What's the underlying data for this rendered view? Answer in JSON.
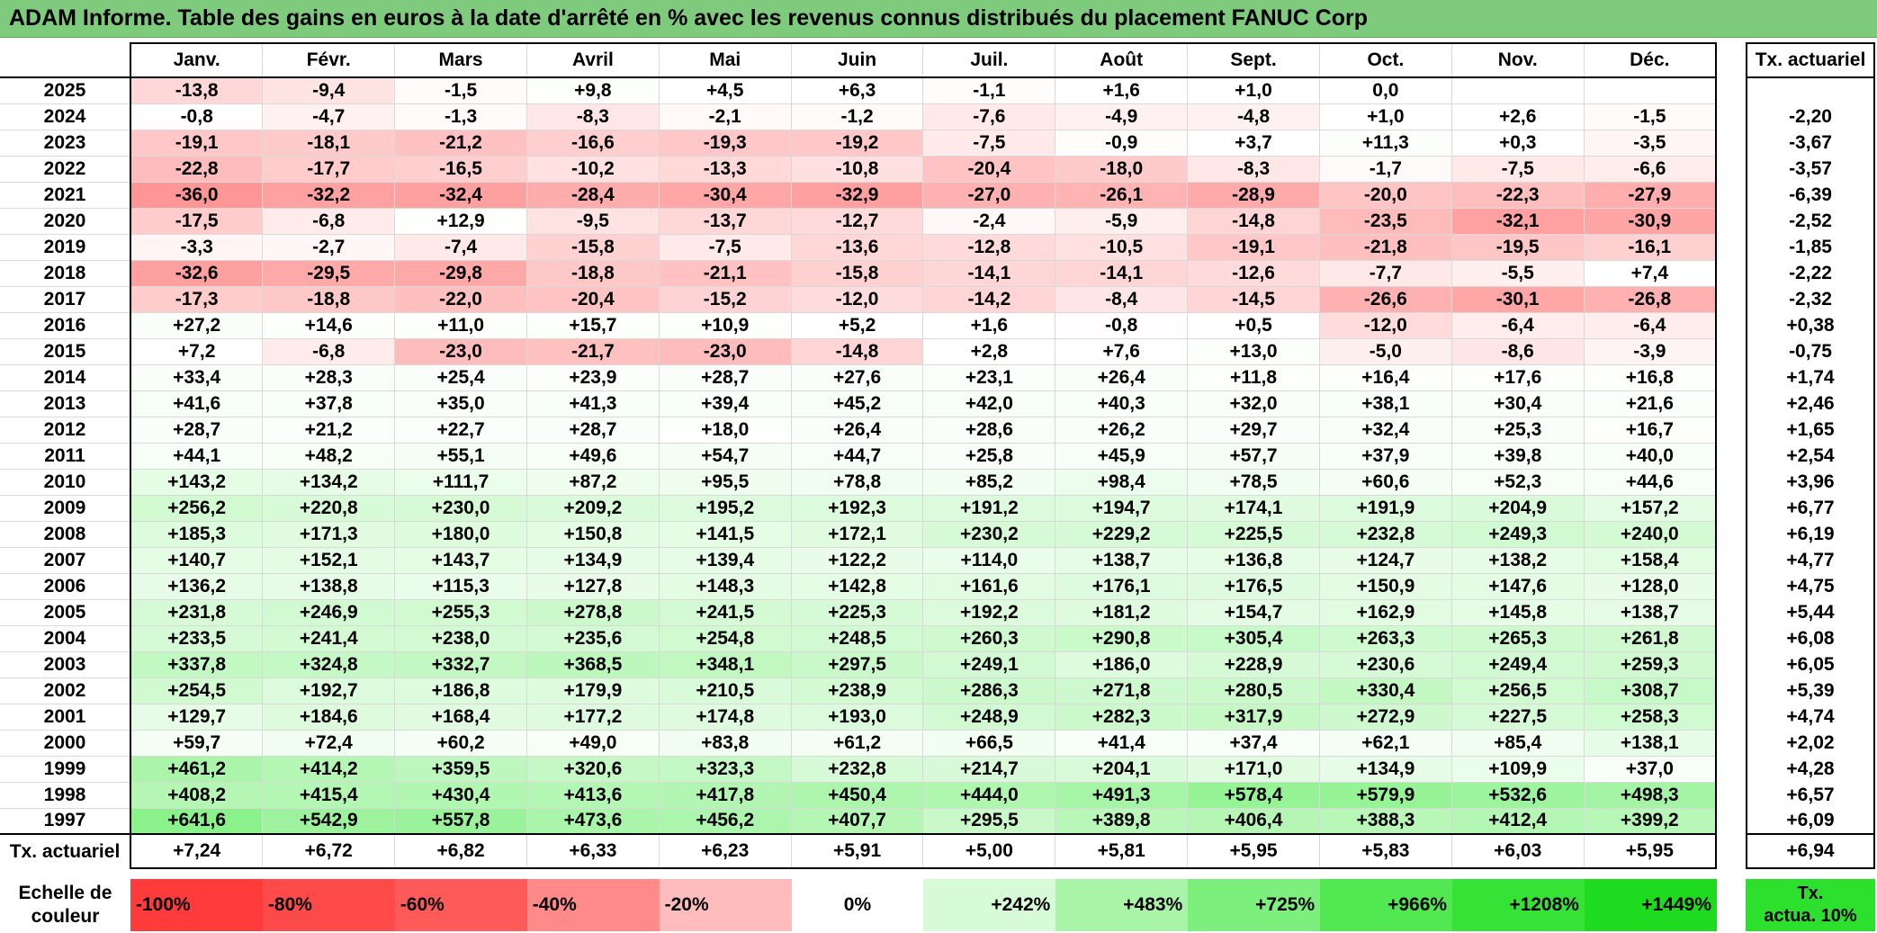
{
  "title": "ADAM Informe. Table des gains en euros à la date d'arrêté en % avec les revenus connus distribués du placement FANUC Corp",
  "months": [
    "Janv.",
    "Févr.",
    "Mars",
    "Avril",
    "Mai",
    "Juin",
    "Juil.",
    "Août",
    "Sept.",
    "Oct.",
    "Nov.",
    "Déc."
  ],
  "tx_header": "Tx. actuariel",
  "rows": [
    {
      "year": "2025",
      "cells": [
        "-13,8",
        "-9,4",
        "-1,5",
        "+9,8",
        "+4,5",
        "+6,3",
        "-1,1",
        "+1,6",
        "+1,0",
        "0,0",
        "",
        ""
      ],
      "tx": ""
    },
    {
      "year": "2024",
      "cells": [
        "-0,8",
        "-4,7",
        "-1,3",
        "-8,3",
        "-2,1",
        "-1,2",
        "-7,6",
        "-4,9",
        "-4,8",
        "+1,0",
        "+2,6",
        "-1,5"
      ],
      "tx": "-2,20"
    },
    {
      "year": "2023",
      "cells": [
        "-19,1",
        "-18,1",
        "-21,2",
        "-16,6",
        "-19,3",
        "-19,2",
        "-7,5",
        "-0,9",
        "+3,7",
        "+11,3",
        "+0,3",
        "-3,5"
      ],
      "tx": "-3,67"
    },
    {
      "year": "2022",
      "cells": [
        "-22,8",
        "-17,7",
        "-16,5",
        "-10,2",
        "-13,3",
        "-10,8",
        "-20,4",
        "-18,0",
        "-8,3",
        "-1,7",
        "-7,5",
        "-6,6"
      ],
      "tx": "-3,57"
    },
    {
      "year": "2021",
      "cells": [
        "-36,0",
        "-32,2",
        "-32,4",
        "-28,4",
        "-30,4",
        "-32,9",
        "-27,0",
        "-26,1",
        "-28,9",
        "-20,0",
        "-22,3",
        "-27,9"
      ],
      "tx": "-6,39"
    },
    {
      "year": "2020",
      "cells": [
        "-17,5",
        "-6,8",
        "+12,9",
        "-9,5",
        "-13,7",
        "-12,7",
        "-2,4",
        "-5,9",
        "-14,8",
        "-23,5",
        "-32,1",
        "-30,9"
      ],
      "tx": "-2,52"
    },
    {
      "year": "2019",
      "cells": [
        "-3,3",
        "-2,7",
        "-7,4",
        "-15,8",
        "-7,5",
        "-13,6",
        "-12,8",
        "-10,5",
        "-19,1",
        "-21,8",
        "-19,5",
        "-16,1"
      ],
      "tx": "-1,85"
    },
    {
      "year": "2018",
      "cells": [
        "-32,6",
        "-29,5",
        "-29,8",
        "-18,8",
        "-21,1",
        "-15,8",
        "-14,1",
        "-14,1",
        "-12,6",
        "-7,7",
        "-5,5",
        "+7,4"
      ],
      "tx": "-2,22"
    },
    {
      "year": "2017",
      "cells": [
        "-17,3",
        "-18,8",
        "-22,0",
        "-20,4",
        "-15,2",
        "-12,0",
        "-14,2",
        "-8,4",
        "-14,5",
        "-26,6",
        "-30,1",
        "-26,8"
      ],
      "tx": "-2,32"
    },
    {
      "year": "2016",
      "cells": [
        "+27,2",
        "+14,6",
        "+11,0",
        "+15,7",
        "+10,9",
        "+5,2",
        "+1,6",
        "-0,8",
        "+0,5",
        "-12,0",
        "-6,4",
        "-6,4"
      ],
      "tx": "+0,38"
    },
    {
      "year": "2015",
      "cells": [
        "+7,2",
        "-6,8",
        "-23,0",
        "-21,7",
        "-23,0",
        "-14,8",
        "+2,8",
        "+7,6",
        "+13,0",
        "-5,0",
        "-8,6",
        "-3,9"
      ],
      "tx": "-0,75"
    },
    {
      "year": "2014",
      "cells": [
        "+33,4",
        "+28,3",
        "+25,4",
        "+23,9",
        "+28,7",
        "+27,6",
        "+23,1",
        "+26,4",
        "+11,8",
        "+16,4",
        "+17,6",
        "+16,8"
      ],
      "tx": "+1,74"
    },
    {
      "year": "2013",
      "cells": [
        "+41,6",
        "+37,8",
        "+35,0",
        "+41,3",
        "+39,4",
        "+45,2",
        "+42,0",
        "+40,3",
        "+32,0",
        "+38,1",
        "+30,4",
        "+21,6"
      ],
      "tx": "+2,46"
    },
    {
      "year": "2012",
      "cells": [
        "+28,7",
        "+21,2",
        "+22,7",
        "+28,7",
        "+18,0",
        "+26,4",
        "+28,6",
        "+26,2",
        "+29,7",
        "+32,4",
        "+25,3",
        "+16,7"
      ],
      "tx": "+1,65"
    },
    {
      "year": "2011",
      "cells": [
        "+44,1",
        "+48,2",
        "+55,1",
        "+49,6",
        "+54,7",
        "+44,7",
        "+25,8",
        "+45,9",
        "+57,7",
        "+37,9",
        "+39,8",
        "+40,0"
      ],
      "tx": "+2,54"
    },
    {
      "year": "2010",
      "cells": [
        "+143,2",
        "+134,2",
        "+111,7",
        "+87,2",
        "+95,5",
        "+78,8",
        "+85,2",
        "+98,4",
        "+78,5",
        "+60,6",
        "+52,3",
        "+44,6"
      ],
      "tx": "+3,96"
    },
    {
      "year": "2009",
      "cells": [
        "+256,2",
        "+220,8",
        "+230,0",
        "+209,2",
        "+195,2",
        "+192,3",
        "+191,2",
        "+194,7",
        "+174,1",
        "+191,9",
        "+204,9",
        "+157,2"
      ],
      "tx": "+6,77"
    },
    {
      "year": "2008",
      "cells": [
        "+185,3",
        "+171,3",
        "+180,0",
        "+150,8",
        "+141,5",
        "+172,1",
        "+230,2",
        "+229,2",
        "+225,5",
        "+232,8",
        "+249,3",
        "+240,0"
      ],
      "tx": "+6,19"
    },
    {
      "year": "2007",
      "cells": [
        "+140,7",
        "+152,1",
        "+143,7",
        "+134,9",
        "+139,4",
        "+122,2",
        "+114,0",
        "+138,7",
        "+136,8",
        "+124,7",
        "+138,2",
        "+158,4"
      ],
      "tx": "+4,77"
    },
    {
      "year": "2006",
      "cells": [
        "+136,2",
        "+138,8",
        "+115,3",
        "+127,8",
        "+148,3",
        "+142,8",
        "+161,6",
        "+176,1",
        "+176,5",
        "+150,9",
        "+147,6",
        "+128,0"
      ],
      "tx": "+4,75"
    },
    {
      "year": "2005",
      "cells": [
        "+231,8",
        "+246,9",
        "+255,3",
        "+278,8",
        "+241,5",
        "+225,3",
        "+192,2",
        "+181,2",
        "+154,7",
        "+162,9",
        "+145,8",
        "+138,7"
      ],
      "tx": "+5,44"
    },
    {
      "year": "2004",
      "cells": [
        "+233,5",
        "+241,4",
        "+238,0",
        "+235,6",
        "+254,8",
        "+248,5",
        "+260,3",
        "+290,8",
        "+305,4",
        "+263,3",
        "+265,3",
        "+261,8"
      ],
      "tx": "+6,08"
    },
    {
      "year": "2003",
      "cells": [
        "+337,8",
        "+324,8",
        "+332,7",
        "+368,5",
        "+348,1",
        "+297,5",
        "+249,1",
        "+186,0",
        "+228,9",
        "+230,6",
        "+249,4",
        "+259,3"
      ],
      "tx": "+6,05"
    },
    {
      "year": "2002",
      "cells": [
        "+254,5",
        "+192,7",
        "+186,8",
        "+179,9",
        "+210,5",
        "+238,9",
        "+286,3",
        "+271,8",
        "+280,5",
        "+330,4",
        "+256,5",
        "+308,7"
      ],
      "tx": "+5,39"
    },
    {
      "year": "2001",
      "cells": [
        "+129,7",
        "+184,6",
        "+168,4",
        "+177,2",
        "+174,8",
        "+193,0",
        "+248,9",
        "+282,3",
        "+317,9",
        "+272,9",
        "+227,5",
        "+258,3"
      ],
      "tx": "+4,74"
    },
    {
      "year": "2000",
      "cells": [
        "+59,7",
        "+72,4",
        "+60,2",
        "+49,0",
        "+83,8",
        "+61,2",
        "+66,5",
        "+41,4",
        "+37,4",
        "+62,1",
        "+85,4",
        "+138,1"
      ],
      "tx": "+2,02"
    },
    {
      "year": "1999",
      "cells": [
        "+461,2",
        "+414,2",
        "+359,5",
        "+320,6",
        "+323,3",
        "+232,8",
        "+214,7",
        "+204,1",
        "+171,0",
        "+134,9",
        "+109,9",
        "+37,0"
      ],
      "tx": "+4,28"
    },
    {
      "year": "1998",
      "cells": [
        "+408,2",
        "+415,4",
        "+430,4",
        "+413,6",
        "+417,8",
        "+450,4",
        "+444,0",
        "+491,3",
        "+578,4",
        "+579,9",
        "+532,6",
        "+498,3"
      ],
      "tx": "+6,57"
    },
    {
      "year": "1997",
      "cells": [
        "+641,6",
        "+542,9",
        "+557,8",
        "+473,6",
        "+456,2",
        "+407,7",
        "+295,5",
        "+389,8",
        "+406,4",
        "+388,3",
        "+412,4",
        "+399,2"
      ],
      "tx": "+6,09"
    }
  ],
  "tx_row": {
    "label": "Tx. actuariel",
    "cells": [
      "+7,24",
      "+6,72",
      "+6,82",
      "+6,33",
      "+6,23",
      "+5,91",
      "+5,00",
      "+5,81",
      "+5,95",
      "+5,83",
      "+6,03",
      "+5,95"
    ],
    "total": "+6,94"
  },
  "legend": {
    "label_line1": "Echelle de",
    "label_line2": "couleur",
    "items": [
      {
        "text": "-100%",
        "color": "#ff3b3b",
        "kind": "neg"
      },
      {
        "text": "-80%",
        "color": "#ff4a4a",
        "kind": "neg"
      },
      {
        "text": "-60%",
        "color": "#ff5a5a",
        "kind": "neg"
      },
      {
        "text": "-40%",
        "color": "#ff8a8a",
        "kind": "neg"
      },
      {
        "text": "-20%",
        "color": "#ffbcbc",
        "kind": "neg"
      },
      {
        "text": "0%",
        "color": "#ffffff",
        "kind": "zero"
      },
      {
        "text": "+242%",
        "color": "#d6fbd6",
        "kind": "pos"
      },
      {
        "text": "+483%",
        "color": "#a8f5a8",
        "kind": "pos"
      },
      {
        "text": "+725%",
        "color": "#7def7d",
        "kind": "pos"
      },
      {
        "text": "+966%",
        "color": "#52e852",
        "kind": "pos"
      },
      {
        "text": "+1208%",
        "color": "#36e236",
        "kind": "pos"
      },
      {
        "text": "+1449%",
        "color": "#1fdb1f",
        "kind": "pos"
      }
    ],
    "tx_line1": "Tx.",
    "tx_line2": "actua. 10%",
    "tx_color": "#2ee02e"
  }
}
